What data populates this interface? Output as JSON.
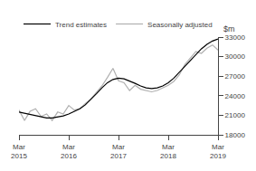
{
  "chart_data": {
    "type": "line",
    "ylabel": "$m",
    "categories": [
      "Mar\n2015",
      null,
      null,
      null,
      null,
      null,
      null,
      null,
      null,
      "Mar\n2016",
      null,
      null,
      null,
      null,
      null,
      null,
      null,
      null,
      "Mar\n2017",
      null,
      null,
      null,
      null,
      null,
      null,
      null,
      null,
      "Mar\n2018",
      null,
      null,
      null,
      null,
      null,
      null,
      null,
      null,
      "Mar\n2019"
    ],
    "series": [
      {
        "name": "Seasonally adjusted",
        "color": "#b0b0b0",
        "values": [
          21800,
          20200,
          21600,
          22000,
          20800,
          21200,
          20200,
          21500,
          21200,
          22500,
          21800,
          22000,
          22800,
          23500,
          24500,
          25500,
          26800,
          28200,
          26300,
          26000,
          24800,
          25600,
          25000,
          24800,
          24600,
          24800,
          25200,
          25600,
          26200,
          27200,
          28800,
          29800,
          30800,
          30500,
          31300,
          31800,
          31000
        ]
      },
      {
        "name": "Trend estimates",
        "color": "#000000",
        "values": [
          21500,
          21300,
          21100,
          20900,
          20700,
          20600,
          20600,
          20700,
          20900,
          21200,
          21600,
          22000,
          22600,
          23400,
          24300,
          25200,
          26000,
          26500,
          26700,
          26600,
          26300,
          25900,
          25500,
          25200,
          25100,
          25200,
          25500,
          26000,
          26700,
          27600,
          28500,
          29500,
          30400,
          31200,
          31900,
          32400,
          32700
        ]
      }
    ],
    "ylim": [
      18000,
      33000
    ],
    "yticks": [
      18000,
      21000,
      24000,
      27000,
      30000,
      33000
    ],
    "grid": false,
    "legend": "upper left"
  }
}
